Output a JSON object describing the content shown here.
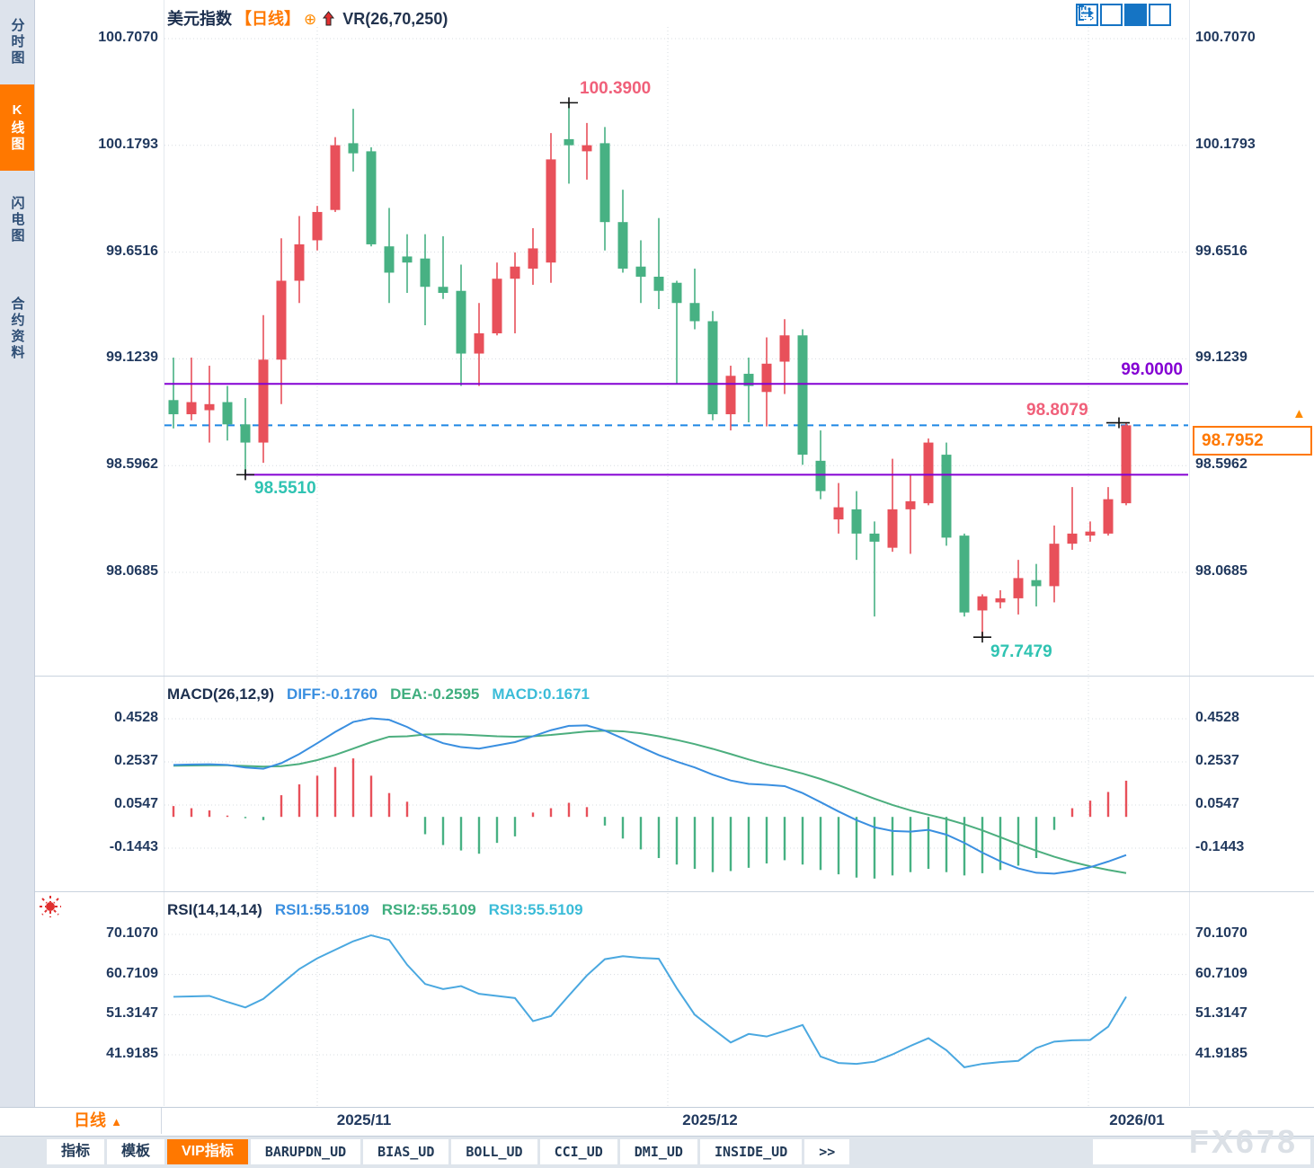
{
  "window": {
    "watermark": "FX678"
  },
  "sidebar": {
    "items": [
      {
        "label": "分时图",
        "active": false
      },
      {
        "label": "K线图",
        "active": true
      },
      {
        "label": "闪电图",
        "active": false
      },
      {
        "label": "合约资料",
        "active": false
      }
    ]
  },
  "header": {
    "symbol": "美元指数",
    "period": "【日线】",
    "add_icon": "⊕",
    "indicator": "VR(26,70,250)"
  },
  "price_panel": {
    "axis_labels": [
      "100.7070",
      "100.1793",
      "99.6516",
      "99.1239",
      "98.5962",
      "98.0685"
    ],
    "axis_values": [
      100.707,
      100.1793,
      99.6516,
      99.1239,
      98.5962,
      98.0685
    ],
    "annotations": {
      "high": "100.3900",
      "low1": "98.5510",
      "low2": "97.7479",
      "hline": "99.0000",
      "recent_high": "98.8079",
      "last_price": "98.7952"
    }
  },
  "macd_panel": {
    "title": "MACD(26,12,9)",
    "diff_label": "DIFF:-0.1760",
    "dea_label": "DEA:-0.2595",
    "macd_label": "MACD:0.1671",
    "axis_labels": [
      "0.4528",
      "0.2537",
      "0.0547",
      "-0.1443"
    ],
    "axis_values": [
      0.4528,
      0.2537,
      0.0547,
      -0.1443
    ]
  },
  "rsi_panel": {
    "title": "RSI(14,14,14)",
    "rsi1_label": "RSI1:55.5109",
    "rsi2_label": "RSI2:55.5109",
    "rsi3_label": "RSI3:55.5109",
    "axis_labels": [
      "70.1070",
      "60.7109",
      "51.3147",
      "41.9185"
    ],
    "axis_values": [
      70.107,
      60.7109,
      51.3147,
      41.9185
    ]
  },
  "x_axis": {
    "labels": [
      "2025/11",
      "2025/12",
      "2026/01"
    ],
    "period_label": "日线",
    "period_arrow": "▲"
  },
  "bottom_tabs": {
    "items": [
      {
        "label": "指标",
        "active": false,
        "mono": false
      },
      {
        "label": "模板",
        "active": false,
        "mono": false
      },
      {
        "label": "VIP指标",
        "active": true,
        "mono": false
      },
      {
        "label": "BARUPDN_UD",
        "active": false,
        "mono": true
      },
      {
        "label": "BIAS_UD",
        "active": false,
        "mono": true
      },
      {
        "label": "BOLL_UD",
        "active": false,
        "mono": true
      },
      {
        "label": "CCI_UD",
        "active": false,
        "mono": true
      },
      {
        "label": "DMI_UD",
        "active": false,
        "mono": true
      },
      {
        "label": "INSIDE_UD",
        "active": false,
        "mono": true
      },
      {
        "label": ">>",
        "active": false,
        "mono": true
      }
    ]
  },
  "colors": {
    "up": "#e8505a",
    "down": "#47b183",
    "macd_diff": "#3a8fe0",
    "macd_dea": "#4cae7e",
    "rsi_line": "#4aa8e0",
    "purple_line": "#8400d3",
    "dashed_line": "#1e88e5",
    "accent_orange": "#ff7800",
    "grid": "#d7dce1",
    "marker": "#111111"
  },
  "chart_data": [
    {
      "type": "candlestick",
      "title": "美元指数 日线 (US Dollar Index Daily)",
      "x_month_labels": [
        "2025/11",
        "2025/12",
        "2026/01"
      ],
      "ylim": [
        98.0685,
        100.707
      ],
      "key_levels": {
        "resistance": 99.0,
        "support": 98.551,
        "last_price": 98.7952,
        "period_high": 100.39,
        "recent_high": 98.8079,
        "period_low": 97.7479
      },
      "marker_indices": {
        "high": 22,
        "low1": 4,
        "low2": 45,
        "last": 53
      },
      "candles": [
        [
          98.92,
          99.13,
          98.78,
          98.85
        ],
        [
          98.85,
          99.13,
          98.82,
          98.91
        ],
        [
          98.87,
          99.09,
          98.71,
          98.9
        ],
        [
          98.91,
          98.99,
          98.72,
          98.8
        ],
        [
          98.8,
          98.93,
          98.551,
          98.71
        ],
        [
          98.71,
          99.34,
          98.61,
          99.12
        ],
        [
          99.12,
          99.72,
          98.9,
          99.51
        ],
        [
          99.51,
          99.83,
          99.4,
          99.69
        ],
        [
          99.71,
          99.88,
          99.66,
          99.85
        ],
        [
          99.86,
          100.22,
          99.85,
          100.18
        ],
        [
          100.19,
          100.36,
          100.05,
          100.14
        ],
        [
          100.15,
          100.17,
          99.68,
          99.69
        ],
        [
          99.68,
          99.87,
          99.4,
          99.55
        ],
        [
          99.63,
          99.74,
          99.45,
          99.6
        ],
        [
          99.62,
          99.74,
          99.29,
          99.48
        ],
        [
          99.48,
          99.73,
          99.42,
          99.45
        ],
        [
          99.46,
          99.59,
          98.99,
          99.15
        ],
        [
          99.15,
          99.4,
          98.99,
          99.25
        ],
        [
          99.25,
          99.6,
          99.24,
          99.52
        ],
        [
          99.52,
          99.65,
          99.25,
          99.58
        ],
        [
          99.57,
          99.77,
          99.49,
          99.67
        ],
        [
          99.6,
          100.24,
          99.5,
          100.11
        ],
        [
          100.21,
          100.39,
          99.99,
          100.18
        ],
        [
          100.15,
          100.29,
          100.01,
          100.18
        ],
        [
          100.19,
          100.27,
          99.66,
          99.8
        ],
        [
          99.8,
          99.96,
          99.55,
          99.57
        ],
        [
          99.58,
          99.71,
          99.4,
          99.53
        ],
        [
          99.53,
          99.82,
          99.37,
          99.46
        ],
        [
          99.5,
          99.51,
          99.0,
          99.4
        ],
        [
          99.4,
          99.57,
          99.27,
          99.31
        ],
        [
          99.31,
          99.36,
          98.82,
          98.85
        ],
        [
          98.85,
          99.09,
          98.77,
          99.04
        ],
        [
          99.05,
          99.13,
          98.81,
          98.99
        ],
        [
          98.96,
          99.23,
          98.79,
          99.1
        ],
        [
          99.11,
          99.32,
          98.95,
          99.24
        ],
        [
          99.24,
          99.27,
          98.6,
          98.65
        ],
        [
          98.62,
          98.77,
          98.43,
          98.47
        ],
        [
          98.33,
          98.51,
          98.26,
          98.39
        ],
        [
          98.38,
          98.47,
          98.13,
          98.26
        ],
        [
          98.26,
          98.32,
          97.85,
          98.22
        ],
        [
          98.19,
          98.63,
          98.17,
          98.38
        ],
        [
          98.38,
          98.55,
          98.16,
          98.42
        ],
        [
          98.41,
          98.73,
          98.4,
          98.71
        ],
        [
          98.65,
          98.71,
          98.2,
          98.24
        ],
        [
          98.25,
          98.26,
          97.85,
          97.87
        ],
        [
          97.88,
          97.96,
          97.7479,
          97.95
        ],
        [
          97.92,
          97.98,
          97.89,
          97.94
        ],
        [
          97.94,
          98.13,
          97.86,
          98.04
        ],
        [
          98.03,
          98.11,
          97.9,
          98.0
        ],
        [
          98.0,
          98.3,
          97.92,
          98.21
        ],
        [
          98.21,
          98.49,
          98.18,
          98.26
        ],
        [
          98.25,
          98.32,
          98.22,
          98.27
        ],
        [
          98.26,
          98.49,
          98.25,
          98.43
        ],
        [
          98.41,
          98.8079,
          98.4,
          98.7952
        ]
      ]
    },
    {
      "type": "macd",
      "params": [
        26,
        12,
        9
      ],
      "current": {
        "diff": -0.176,
        "dea": -0.2595,
        "macd": 0.1671
      },
      "ylim": [
        -0.1443,
        0.4528
      ],
      "diff": [
        0.24,
        0.242,
        0.243,
        0.24,
        0.228,
        0.222,
        0.248,
        0.29,
        0.34,
        0.392,
        0.438,
        0.455,
        0.448,
        0.415,
        0.372,
        0.34,
        0.322,
        0.315,
        0.33,
        0.345,
        0.372,
        0.4,
        0.42,
        0.422,
        0.398,
        0.362,
        0.322,
        0.285,
        0.255,
        0.228,
        0.195,
        0.168,
        0.152,
        0.148,
        0.142,
        0.11,
        0.068,
        0.025,
        -0.015,
        -0.048,
        -0.065,
        -0.068,
        -0.06,
        -0.082,
        -0.12,
        -0.165,
        -0.205,
        -0.238,
        -0.258,
        -0.262,
        -0.25,
        -0.232,
        -0.206,
        -0.176
      ],
      "dea": [
        0.236,
        0.237,
        0.238,
        0.238,
        0.235,
        0.232,
        0.234,
        0.244,
        0.262,
        0.286,
        0.315,
        0.345,
        0.37,
        0.372,
        0.38,
        0.382,
        0.38,
        0.376,
        0.372,
        0.37,
        0.372,
        0.378,
        0.386,
        0.394,
        0.398,
        0.395,
        0.386,
        0.372,
        0.355,
        0.336,
        0.314,
        0.29,
        0.265,
        0.242,
        0.222,
        0.2,
        0.175,
        0.146,
        0.115,
        0.084,
        0.055,
        0.03,
        0.01,
        -0.01,
        -0.034,
        -0.062,
        -0.094,
        -0.126,
        -0.156,
        -0.184,
        -0.208,
        -0.228,
        -0.245,
        -0.2595
      ],
      "hist": [
        0.05,
        0.04,
        0.03,
        0.006,
        -0.006,
        -0.015,
        0.1,
        0.15,
        0.19,
        0.23,
        0.27,
        0.19,
        0.11,
        0.07,
        -0.08,
        -0.13,
        -0.155,
        -0.17,
        -0.12,
        -0.09,
        0.02,
        0.04,
        0.065,
        0.045,
        -0.04,
        -0.1,
        -0.15,
        -0.19,
        -0.22,
        -0.24,
        -0.255,
        -0.25,
        -0.235,
        -0.215,
        -0.2,
        -0.22,
        -0.245,
        -0.265,
        -0.28,
        -0.285,
        -0.27,
        -0.255,
        -0.24,
        -0.255,
        -0.27,
        -0.26,
        -0.245,
        -0.225,
        -0.19,
        -0.06,
        0.04,
        0.075,
        0.115,
        0.167
      ]
    },
    {
      "type": "line",
      "name": "RSI(14,14,14)",
      "current": 55.5109,
      "ylim": [
        41.9185,
        70.107
      ],
      "values": [
        55.5,
        55.6,
        55.7,
        54.3,
        53.0,
        55.0,
        58.5,
        62.0,
        64.5,
        66.5,
        68.5,
        69.9,
        68.8,
        63.0,
        58.5,
        57.3,
        58.0,
        56.2,
        55.7,
        55.2,
        49.8,
        51.0,
        55.8,
        60.5,
        64.3,
        65.0,
        64.6,
        64.4,
        57.5,
        51.3,
        48.0,
        44.8,
        46.8,
        46.2,
        47.5,
        48.9,
        41.5,
        40.0,
        39.8,
        40.3,
        42.0,
        44.0,
        45.8,
        43.0,
        39.0,
        39.8,
        40.2,
        40.5,
        43.5,
        45.0,
        45.3,
        45.4,
        48.5,
        55.5109
      ]
    }
  ]
}
